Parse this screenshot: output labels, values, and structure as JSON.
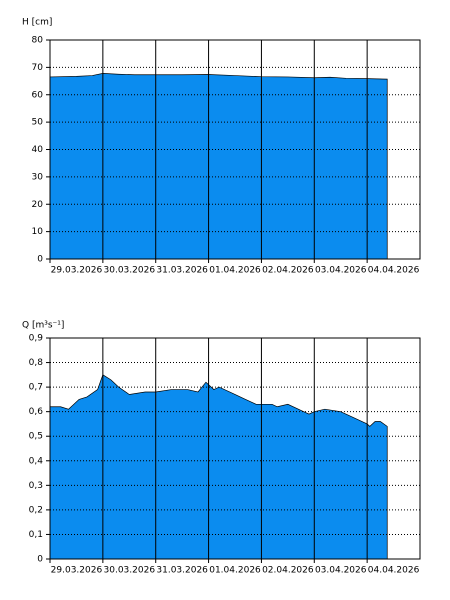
{
  "chart_data": [
    {
      "type": "area",
      "y_label": "H [cm]",
      "color": "#0b8cef",
      "grid": true,
      "xlim": [
        0,
        7
      ],
      "xticks": [
        {
          "value": 0,
          "label": "29.03.2026"
        },
        {
          "value": 1,
          "label": "30.03.2026"
        },
        {
          "value": 2,
          "label": "31.03.2026"
        },
        {
          "value": 3,
          "label": "01.04.2026"
        },
        {
          "value": 4,
          "label": "02.04.2026"
        },
        {
          "value": 5,
          "label": "03.04.2026"
        },
        {
          "value": 6,
          "label": "04.04.2026"
        }
      ],
      "ylim": [
        0,
        80
      ],
      "yticks": [
        0,
        10,
        20,
        30,
        40,
        50,
        60,
        70,
        80
      ],
      "x": [
        0,
        0.5,
        0.8,
        1.0,
        1.3,
        1.6,
        2.0,
        2.5,
        3.0,
        3.5,
        4.0,
        4.5,
        5.0,
        5.3,
        5.6,
        6.0,
        6.38
      ],
      "values": [
        66.5,
        66.7,
        67.0,
        67.8,
        67.5,
        67.3,
        67.3,
        67.3,
        67.4,
        67.0,
        66.6,
        66.5,
        66.2,
        66.4,
        66.0,
        65.9,
        65.7
      ]
    },
    {
      "type": "area",
      "y_label": "Q [m³s⁻¹]",
      "color": "#0b8cef",
      "grid": true,
      "xlim": [
        0,
        7
      ],
      "xticks": [
        {
          "value": 0,
          "label": "29.03.2026"
        },
        {
          "value": 1,
          "label": "30.03.2026"
        },
        {
          "value": 2,
          "label": "31.03.2026"
        },
        {
          "value": 3,
          "label": "01.04.2026"
        },
        {
          "value": 4,
          "label": "02.04.2026"
        },
        {
          "value": 5,
          "label": "03.04.2026"
        },
        {
          "value": 6,
          "label": "04.04.2026"
        }
      ],
      "ylim": [
        0,
        0.9
      ],
      "yticks": [
        0,
        {
          "value": 0.1,
          "label": "0,1"
        },
        {
          "value": 0.2,
          "label": "0,2"
        },
        {
          "value": 0.3,
          "label": "0,3"
        },
        {
          "value": 0.4,
          "label": "0,4"
        },
        {
          "value": 0.5,
          "label": "0,5"
        },
        {
          "value": 0.6,
          "label": "0,6"
        },
        {
          "value": 0.7,
          "label": "0,7"
        },
        {
          "value": 0.8,
          "label": "0,8"
        },
        {
          "value": 0.9,
          "label": "0,9"
        }
      ],
      "x": [
        0,
        0.2,
        0.35,
        0.55,
        0.7,
        0.9,
        1.0,
        1.15,
        1.3,
        1.5,
        1.8,
        2.0,
        2.3,
        2.6,
        2.8,
        2.95,
        3.1,
        3.2,
        3.5,
        3.7,
        3.9,
        4.2,
        4.3,
        4.5,
        4.8,
        4.9,
        5.0,
        5.2,
        5.5,
        5.7,
        6.0,
        6.05,
        6.15,
        6.25,
        6.38
      ],
      "values": [
        0.62,
        0.62,
        0.61,
        0.65,
        0.66,
        0.69,
        0.75,
        0.73,
        0.7,
        0.67,
        0.68,
        0.68,
        0.69,
        0.69,
        0.68,
        0.72,
        0.69,
        0.7,
        0.67,
        0.65,
        0.63,
        0.63,
        0.62,
        0.63,
        0.6,
        0.59,
        0.6,
        0.61,
        0.6,
        0.58,
        0.55,
        0.54,
        0.56,
        0.56,
        0.54
      ]
    }
  ]
}
